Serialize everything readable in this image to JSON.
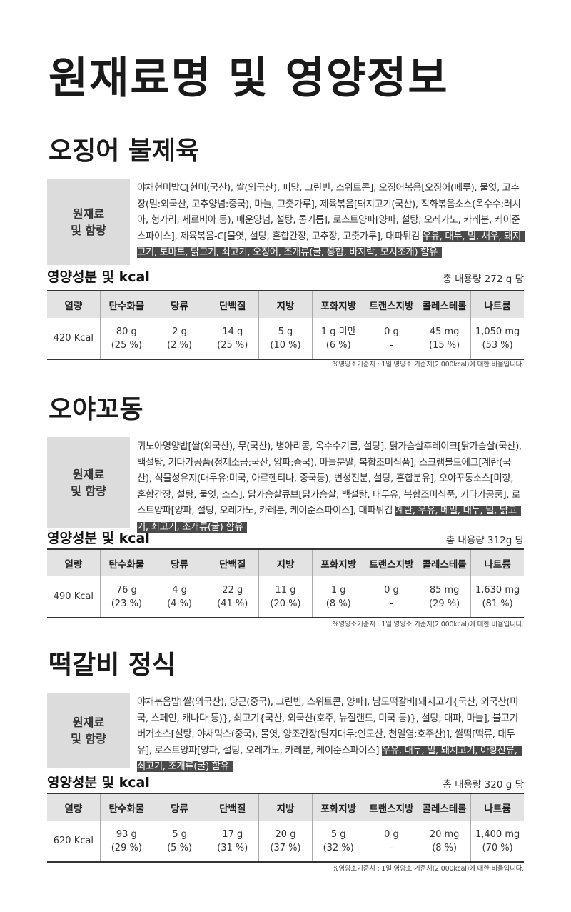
{
  "page_title": "원재료명 및 영양정보",
  "ingredients_label_line1": "원재료",
  "ingredients_label_line2": "및 함량",
  "nutrition_title": "영양성분 및 kcal",
  "columns": [
    "열량",
    "탄수화물",
    "당류",
    "단백질",
    "지방",
    "포화지방",
    "트랜스지방",
    "콜레스테롤",
    "나트륨"
  ],
  "note": "%영양소기준치 : 1일 영양소 기준치(2,000kcal)에 대한 비율입니다.",
  "products": [
    {
      "name": "오징어 불제육",
      "ingredients": "야채현미밥C[현미(국산), 쌀(외국산), 피망, 그린빈, 스위트콘], 오징어볶음[오징어(페루), 물엿, 고추장(밀:외국산, 고추양념:중국), 마늘, 고춧가루], 제육볶음[돼지고기(국산), 직화볶음소스(옥수수:러시아, 헝가리, 세르비아 등), 매운양념, 설탕, 콩기름], 로스트양파[양파, 설탕, 오레가노, 카레분, 케이준스파이스], 제육볶음-C[물엿, 설탕, 혼합간장, 고추장, 고춧가루], 대파튀김",
      "allergens": "우유, 대두, 밀, 새우, 돼지고기, 토마토, 닭고기, 쇠고기, 오징어, 조개류(굴, 홍합, 바지락, 모시조개) 함유",
      "total": "총 내용량 272 g 당",
      "nutrition": [
        {
          "v": "420 Kcal",
          "p": ""
        },
        {
          "v": "80 g",
          "p": "(25 %)"
        },
        {
          "v": "2 g",
          "p": "(2 %)"
        },
        {
          "v": "14 g",
          "p": "(25 %)"
        },
        {
          "v": "5 g",
          "p": "(10 %)"
        },
        {
          "v": "1 g 미만",
          "p": "(6 %)"
        },
        {
          "v": "0 g",
          "p": "-"
        },
        {
          "v": "45 mg",
          "p": "(15 %)"
        },
        {
          "v": "1,050 mg",
          "p": "(53 %)"
        }
      ]
    },
    {
      "name": "오야꼬동",
      "ingredients": "퀴노아영양밥[쌀(외국산), 무(국산), 병아리콩, 옥수수기름, 설탕], 닭가슴살후레이크[닭가슴살(국산), 백설탕, 기타가공품(정제소금:국산, 양파:중국), 마늘분말, 복합조미식품], 스크램블드에그[계란(국산), 식물성유지(대두유:미국, 아르헨티나, 중국등), 변성전분, 설탕, 혼합분유], 오야꾸동소스[미향, 혼합간장, 설탕, 물엿, 소스], 닭가슴살큐브[닭가슴살, 백설탕, 대두유, 복합조미식품, 기타가공품], 로스트양파[양파, 설탕, 오레가노, 카레분, 케이준스파이스], 대파튀김",
      "allergens": "계란, 우유, 메밀, 대두, 밀, 닭고기, 쇠고기, 조개류(굴) 함유",
      "total": "총 내용량 312g 당",
      "nutrition": [
        {
          "v": "490 Kcal",
          "p": ""
        },
        {
          "v": "76 g",
          "p": "(23 %)"
        },
        {
          "v": "4 g",
          "p": "(4 %)"
        },
        {
          "v": "22 g",
          "p": "(41 %)"
        },
        {
          "v": "11 g",
          "p": "(20 %)"
        },
        {
          "v": "1 g",
          "p": "(8 %)"
        },
        {
          "v": "0 g",
          "p": "-"
        },
        {
          "v": "85 mg",
          "p": "(29 %)"
        },
        {
          "v": "1,630 mg",
          "p": "(81 %)"
        }
      ]
    },
    {
      "name": "떡갈비 정식",
      "ingredients": "야채볶음밥[쌀(외국산), 당근(중국), 그린빈, 스위트콘, 양파], 남도떡갈비[돼지고기{국산, 외국산(미국, 스페인, 캐나다 등)}, 쇠고기{국산, 외국산(호주, 뉴질랜드, 미국 등)}, 설탕, 대파, 마늘], 불고기버거소스[설탕, 야채믹스(중국), 물엿, 양조간장(탈지대두:인도산, 천일염:호주산)], 쌀떡[떡류, 대두유], 로스트양파[양파, 설탕, 오레가노, 카레분, 케이준스파이스]",
      "allergens": "우유, 대두, 밀, 돼지고기, 아황산류, 쇠고기, 조개류(굴) 함유",
      "total": "총 내용량 320 g 당",
      "nutrition": [
        {
          "v": "620 Kcal",
          "p": ""
        },
        {
          "v": "93 g",
          "p": "(29 %)"
        },
        {
          "v": "5 g",
          "p": "(5 %)"
        },
        {
          "v": "17 g",
          "p": "(31 %)"
        },
        {
          "v": "20 g",
          "p": "(37 %)"
        },
        {
          "v": "5 g",
          "p": "(32 %)"
        },
        {
          "v": "0 g",
          "p": "-"
        },
        {
          "v": "20 mg",
          "p": "(8 %)"
        },
        {
          "v": "1,400 mg",
          "p": "(70 %)"
        }
      ]
    }
  ]
}
